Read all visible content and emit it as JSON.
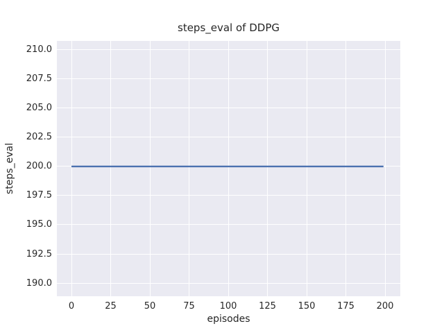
{
  "chart_data": {
    "type": "line",
    "title": "steps_eval of DDPG",
    "xlabel": "episodes",
    "ylabel": "steps_eval",
    "x_ticks": [
      {
        "v": 0,
        "label": "0"
      },
      {
        "v": 25,
        "label": "25"
      },
      {
        "v": 50,
        "label": "50"
      },
      {
        "v": 75,
        "label": "75"
      },
      {
        "v": 100,
        "label": "100"
      },
      {
        "v": 125,
        "label": "125"
      },
      {
        "v": 150,
        "label": "150"
      },
      {
        "v": 175,
        "label": "175"
      },
      {
        "v": 200,
        "label": "200"
      }
    ],
    "y_ticks": [
      {
        "v": 190.0,
        "label": "190.0"
      },
      {
        "v": 192.5,
        "label": "192.5"
      },
      {
        "v": 195.0,
        "label": "195.0"
      },
      {
        "v": 197.5,
        "label": "197.5"
      },
      {
        "v": 200.0,
        "label": "200.0"
      },
      {
        "v": 202.5,
        "label": "202.5"
      },
      {
        "v": 205.0,
        "label": "205.0"
      },
      {
        "v": 207.5,
        "label": "207.5"
      },
      {
        "v": 210.0,
        "label": "210.0"
      }
    ],
    "xlim": [
      -9.3,
      209.73
    ],
    "ylim": [
      188.87,
      210.77
    ],
    "grid": true,
    "legend_position": "none",
    "series": [
      {
        "name": "steps_eval of DDPG",
        "x": [
          0,
          199
        ],
        "y": [
          200.0,
          200.0
        ],
        "color": "#4C72B0",
        "linewidth": 2.4
      }
    ],
    "colors": {
      "figure_background": "#FFFFFF",
      "axes_background": "#EAEAF2",
      "grid": "#FFFFFF",
      "line": "#4C72B0",
      "text": "#262626"
    }
  }
}
